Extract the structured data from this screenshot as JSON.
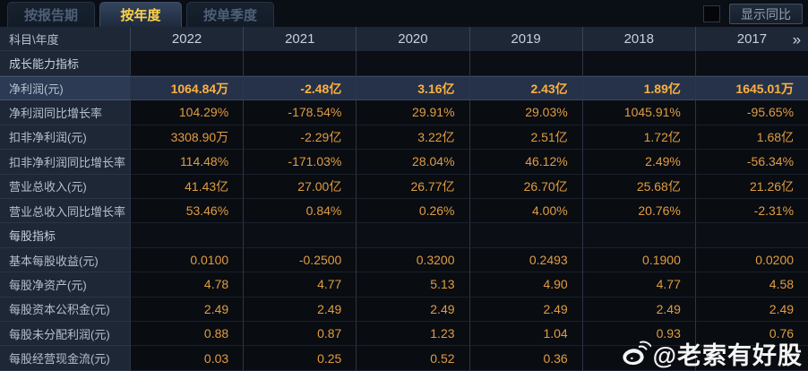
{
  "tabs": [
    {
      "label": "按报告期",
      "active": false
    },
    {
      "label": "按年度",
      "active": true
    },
    {
      "label": "按单季度",
      "active": false
    }
  ],
  "controls": {
    "show_yoy_label": "显示同比",
    "checkbox_checked": false
  },
  "table": {
    "corner_label": "科目\\年度",
    "years": [
      "2022",
      "2021",
      "2020",
      "2019",
      "2018",
      "2017"
    ],
    "more_icon": "»",
    "rows": [
      {
        "type": "section",
        "label": "成长能力指标",
        "values": [
          "",
          "",
          "",
          "",
          "",
          ""
        ]
      },
      {
        "type": "highlight",
        "label": "净利润(元)",
        "values": [
          "1064.84万",
          "-2.48亿",
          "3.16亿",
          "2.43亿",
          "1.89亿",
          "1645.01万"
        ]
      },
      {
        "type": "data",
        "label": "净利润同比增长率",
        "values": [
          "104.29%",
          "-178.54%",
          "29.91%",
          "29.03%",
          "1045.91%",
          "-95.65%"
        ]
      },
      {
        "type": "data",
        "label": "扣非净利润(元)",
        "values": [
          "3308.90万",
          "-2.29亿",
          "3.22亿",
          "2.51亿",
          "1.72亿",
          "1.68亿"
        ]
      },
      {
        "type": "data",
        "label": "扣非净利润同比增长率",
        "values": [
          "114.48%",
          "-171.03%",
          "28.04%",
          "46.12%",
          "2.49%",
          "-56.34%"
        ]
      },
      {
        "type": "data",
        "label": "营业总收入(元)",
        "values": [
          "41.43亿",
          "27.00亿",
          "26.77亿",
          "26.70亿",
          "25.68亿",
          "21.26亿"
        ]
      },
      {
        "type": "data",
        "label": "营业总收入同比增长率",
        "values": [
          "53.46%",
          "0.84%",
          "0.26%",
          "4.00%",
          "20.76%",
          "-2.31%"
        ]
      },
      {
        "type": "section",
        "label": "每股指标",
        "values": [
          "",
          "",
          "",
          "",
          "",
          ""
        ]
      },
      {
        "type": "data",
        "label": "基本每股收益(元)",
        "values": [
          "0.0100",
          "-0.2500",
          "0.3200",
          "0.2493",
          "0.1900",
          "0.0200"
        ]
      },
      {
        "type": "data",
        "label": "每股净资产(元)",
        "values": [
          "4.78",
          "4.77",
          "5.13",
          "4.90",
          "4.77",
          "4.58"
        ]
      },
      {
        "type": "data",
        "label": "每股资本公积金(元)",
        "values": [
          "2.49",
          "2.49",
          "2.49",
          "2.49",
          "2.49",
          "2.49"
        ]
      },
      {
        "type": "data",
        "label": "每股未分配利润(元)",
        "values": [
          "0.88",
          "0.87",
          "1.23",
          "1.04",
          "0.93",
          "0.76"
        ]
      },
      {
        "type": "data",
        "label": "每股经营现金流(元)",
        "values": [
          "0.03",
          "0.25",
          "0.52",
          "0.36",
          "",
          ""
        ]
      }
    ]
  },
  "watermark": {
    "text": "@老索有好股",
    "icon": "weibo-logo"
  },
  "colors": {
    "accent": "#ffd24a",
    "value": "#e09c42",
    "value-hi": "#ffb03f",
    "bg": "#0a0e15",
    "panel": "#1d2735"
  }
}
